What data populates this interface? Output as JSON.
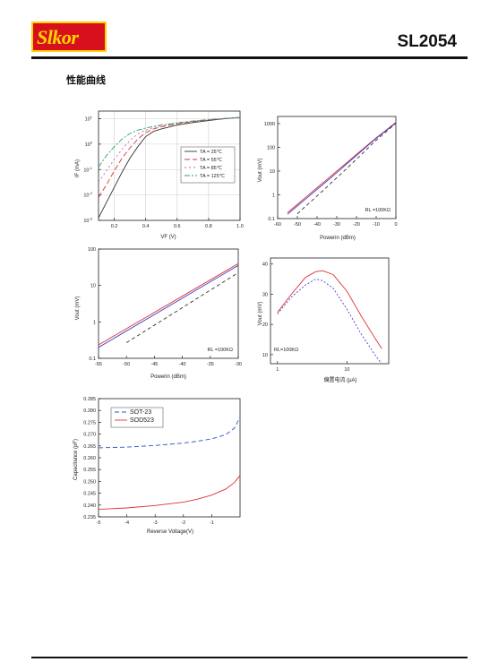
{
  "header": {
    "logo_text": "Slkor",
    "part_number": "SL2054",
    "logo_color": "#d8101e",
    "logo_text_color": "#ffd400"
  },
  "section_title": "性能曲线",
  "chart_data": [
    {
      "type": "line",
      "id": "if-vf",
      "xlabel": "VF (V)",
      "ylabel": "IF (mA)",
      "xlim": [
        0.1,
        1.0
      ],
      "ylim_log10": [
        -3,
        1.3
      ],
      "x_ticks": [
        "0.2",
        "0.4",
        "0.6",
        "0.8",
        "1.0"
      ],
      "x_tick_values": [
        0.2,
        0.4,
        0.6,
        0.8,
        1.0
      ],
      "y_ticks": [
        "10",
        "10",
        "10",
        "10",
        "10"
      ],
      "y_tick_sup": [
        "1",
        "0",
        "-1",
        "-2",
        "-3"
      ],
      "y_tick_values": [
        1,
        0,
        -1,
        -2,
        -3
      ],
      "grid": true,
      "legend_position": "right",
      "series": [
        {
          "name": "TA = 25℃",
          "color": "#333333",
          "dash": "",
          "x": [
            0.1,
            0.15,
            0.2,
            0.25,
            0.3,
            0.35,
            0.4,
            0.45,
            0.5,
            0.6,
            0.7,
            0.8,
            0.9,
            1.0
          ],
          "y": [
            -2.9,
            -2.3,
            -1.7,
            -1.1,
            -0.55,
            -0.1,
            0.3,
            0.5,
            0.6,
            0.75,
            0.85,
            0.93,
            1.0,
            1.05
          ]
        },
        {
          "name": "TA = 55℃",
          "color": "#e0302f",
          "dash": "6,3",
          "x": [
            0.1,
            0.15,
            0.2,
            0.25,
            0.3,
            0.35,
            0.4,
            0.45,
            0.5,
            0.6,
            0.7,
            0.8,
            0.9,
            1.0
          ],
          "y": [
            -2.1,
            -1.6,
            -1.05,
            -0.55,
            -0.15,
            0.2,
            0.45,
            0.6,
            0.68,
            0.8,
            0.88,
            0.95,
            1.0,
            1.05
          ]
        },
        {
          "name": "TA = 85℃",
          "color": "#c060c0",
          "dash": "2,3",
          "x": [
            0.1,
            0.15,
            0.2,
            0.25,
            0.3,
            0.35,
            0.4,
            0.45,
            0.5,
            0.6,
            0.7,
            0.8,
            0.9,
            1.0
          ],
          "y": [
            -1.5,
            -1.05,
            -0.6,
            -0.2,
            0.15,
            0.4,
            0.55,
            0.65,
            0.72,
            0.82,
            0.9,
            0.96,
            1.0,
            1.05
          ]
        },
        {
          "name": "TA = 125℃",
          "color": "#2aa56a",
          "dash": "6,2,2,2",
          "x": [
            0.1,
            0.15,
            0.2,
            0.25,
            0.3,
            0.35,
            0.4,
            0.45,
            0.5,
            0.6,
            0.7,
            0.8,
            0.9,
            1.0
          ],
          "y": [
            -0.9,
            -0.45,
            -0.1,
            0.2,
            0.42,
            0.55,
            0.63,
            0.7,
            0.75,
            0.84,
            0.91,
            0.97,
            1.01,
            1.05
          ]
        }
      ]
    },
    {
      "type": "line",
      "id": "vout-powerin-1",
      "xlabel": "Powerin (dBm)",
      "ylabel": "Vout (mV)",
      "xlim": [
        -60,
        0
      ],
      "ylim_log10": [
        -1,
        3.3
      ],
      "x_ticks": [
        "-60",
        "-50",
        "-40",
        "-30",
        "-20",
        "-10",
        "0"
      ],
      "x_tick_values": [
        -60,
        -50,
        -40,
        -30,
        -20,
        -10,
        0
      ],
      "y_ticks": [
        "0.1",
        "1",
        "10",
        "100",
        "1000"
      ],
      "y_tick_values": [
        -1,
        0,
        1,
        2,
        3
      ],
      "annotation": "RL =100KΩ",
      "grid": false,
      "series": [
        {
          "color": "#e03030",
          "dash": "",
          "x": [
            -55,
            -50,
            -45,
            -40,
            -35,
            -30,
            -25,
            -20,
            -15,
            -10,
            -5,
            0
          ],
          "y": [
            -0.75,
            -0.4,
            -0.05,
            0.3,
            0.65,
            1.0,
            1.35,
            1.7,
            2.05,
            2.4,
            2.72,
            3.05
          ]
        },
        {
          "color": "#4040d0",
          "dash": "",
          "x": [
            -55,
            -50,
            -45,
            -40,
            -35,
            -30,
            -25,
            -20,
            -15,
            -10,
            -5,
            0
          ],
          "y": [
            -0.82,
            -0.47,
            -0.12,
            0.23,
            0.58,
            0.93,
            1.3,
            1.66,
            2.02,
            2.38,
            2.7,
            3.02
          ]
        },
        {
          "color": "#333333",
          "dash": "4,3",
          "x": [
            -50,
            -45,
            -40,
            -35,
            -30,
            -25,
            -20,
            -15,
            -10,
            -5,
            0
          ],
          "y": [
            -0.8,
            -0.42,
            -0.05,
            0.33,
            0.72,
            1.1,
            1.5,
            1.9,
            2.3,
            2.65,
            3.02
          ]
        }
      ]
    },
    {
      "type": "line",
      "id": "vout-powerin-2",
      "xlabel": "Powerin (dBm)",
      "ylabel": "Vout (mV)",
      "xlim": [
        -55,
        -30
      ],
      "ylim_log10": [
        -1,
        2
      ],
      "x_ticks": [
        "-55",
        "-50",
        "-45",
        "-40",
        "-35",
        "-30"
      ],
      "x_tick_values": [
        -55,
        -50,
        -45,
        -40,
        -35,
        -30
      ],
      "y_ticks": [
        "0.1",
        "1",
        "10",
        "100"
      ],
      "y_tick_values": [
        -1,
        0,
        1,
        2
      ],
      "annotation": "RL =100KΩ",
      "grid": false,
      "series": [
        {
          "color": "#e03030",
          "dash": "",
          "x": [
            -55,
            -30
          ],
          "y": [
            -0.63,
            1.6
          ]
        },
        {
          "color": "#4040d0",
          "dash": "",
          "x": [
            -55,
            -30
          ],
          "y": [
            -0.7,
            1.55
          ]
        },
        {
          "color": "#333333",
          "dash": "4,3",
          "x": [
            -50,
            -30
          ],
          "y": [
            -0.57,
            1.35
          ]
        }
      ]
    },
    {
      "type": "line",
      "id": "vout-bias",
      "xlabel": "偏置电流 (μA)",
      "ylabel": "Vout (mV)",
      "xlim_log10": [
        -0.1,
        1.6
      ],
      "ylim": [
        7,
        42
      ],
      "x_ticks": [
        "1",
        "10"
      ],
      "x_tick_values": [
        0,
        1
      ],
      "y_ticks": [
        "10",
        "20",
        "30",
        "40"
      ],
      "y_tick_values": [
        10,
        20,
        30,
        40
      ],
      "annotation": "RL=100KΩ",
      "grid": false,
      "series": [
        {
          "color": "#e03030",
          "dash": "",
          "x": [
            0,
            0.2,
            0.4,
            0.55,
            0.65,
            0.8,
            1.0,
            1.2,
            1.4,
            1.5
          ],
          "y": [
            24,
            30,
            35.5,
            37.5,
            37.8,
            36.5,
            31,
            23,
            15.5,
            12
          ]
        },
        {
          "color": "#4040d0",
          "dash": "2,2",
          "x": [
            0,
            0.2,
            0.4,
            0.55,
            0.65,
            0.8,
            1.0,
            1.2,
            1.4,
            1.5
          ],
          "y": [
            23.5,
            29,
            33,
            35,
            34.5,
            32,
            25,
            17,
            10,
            7
          ]
        }
      ]
    },
    {
      "type": "line",
      "id": "capacitance",
      "xlabel": "Reverse Voltage(V)",
      "ylabel": "Capacitance (pF)",
      "xlim": [
        -5,
        0
      ],
      "ylim": [
        0.235,
        0.285
      ],
      "x_ticks": [
        "-5",
        "-4",
        "-3",
        "-2",
        "-1"
      ],
      "x_tick_values": [
        -5,
        -4,
        -3,
        -2,
        -1
      ],
      "y_ticks": [
        "0.285",
        "0.280",
        "0.275",
        "0.270",
        "0.265",
        "0.260",
        "0.255",
        "0.250",
        "0.245",
        "0.240",
        "0.235"
      ],
      "y_tick_values": [
        0.285,
        0.28,
        0.275,
        0.27,
        0.265,
        0.26,
        0.255,
        0.25,
        0.245,
        0.24,
        0.235
      ],
      "grid": false,
      "legend_position": "top-left",
      "series": [
        {
          "name": "SOT-23",
          "color": "#3050c0",
          "dash": "5,3",
          "x": [
            -5,
            -4,
            -3,
            -2,
            -1.5,
            -1,
            -0.5,
            -0.2,
            0
          ],
          "y": [
            0.2642,
            0.2645,
            0.2652,
            0.2662,
            0.267,
            0.268,
            0.2698,
            0.2725,
            0.2772
          ]
        },
        {
          "name": "SOD523",
          "color": "#e03030",
          "dash": "",
          "x": [
            -5,
            -4,
            -3,
            -2,
            -1.5,
            -1,
            -0.5,
            -0.2,
            0
          ],
          "y": [
            0.2382,
            0.2388,
            0.2398,
            0.2412,
            0.2425,
            0.2442,
            0.2468,
            0.2495,
            0.2525
          ]
        }
      ]
    }
  ]
}
